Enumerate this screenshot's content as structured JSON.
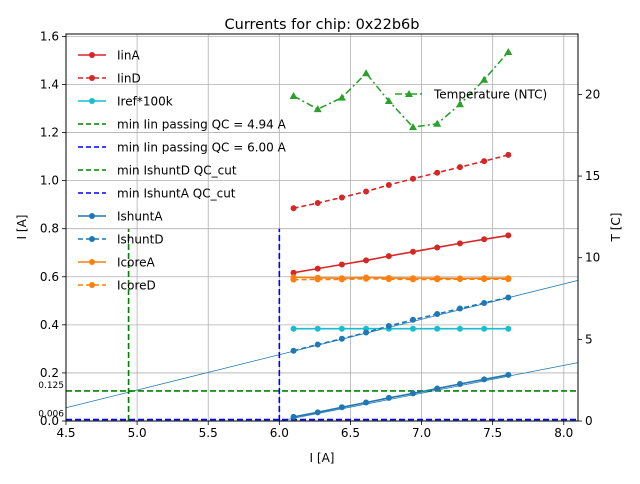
{
  "chart_data": {
    "type": "line",
    "title": "Currents for chip: 0x22b6b",
    "xlabel": "I [A]",
    "ylabel": "I [A]",
    "y2label": "T [C]",
    "xlim": [
      4.5,
      8.1
    ],
    "ylim": [
      0.0,
      1.61
    ],
    "y2lim": [
      0,
      23.7
    ],
    "xticks": [
      "4.5",
      "5.0",
      "5.5",
      "6.0",
      "6.5",
      "7.0",
      "7.5",
      "8.0"
    ],
    "xtick_values": [
      4.5,
      5.0,
      5.5,
      6.0,
      6.5,
      7.0,
      7.5,
      8.0
    ],
    "yticks": [
      "0.0",
      "0.2",
      "0.4",
      "0.6",
      "0.8",
      "1.0",
      "1.2",
      "1.4",
      "1.6"
    ],
    "ytick_values": [
      0.0,
      0.2,
      0.4,
      0.6,
      0.8,
      1.0,
      1.2,
      1.4,
      1.6
    ],
    "y2ticks": [
      "0",
      "5",
      "10",
      "15",
      "20"
    ],
    "y2tick_values": [
      0,
      5,
      10,
      15,
      20
    ],
    "grid": true,
    "legend_position": "upper-left",
    "legend2_position": "upper-right",
    "x": [
      6.1,
      6.27,
      6.44,
      6.61,
      6.77,
      6.94,
      7.11,
      7.27,
      7.44,
      7.61
    ],
    "series": [
      {
        "name": "IinA",
        "color": "#d62728",
        "dash": "solid",
        "marker": "circle",
        "axis": "left",
        "values": [
          0.617,
          0.634,
          0.651,
          0.668,
          0.686,
          0.704,
          0.722,
          0.739,
          0.756,
          0.772
        ]
      },
      {
        "name": "IinD",
        "color": "#d62728",
        "dash": "dashed",
        "marker": "circle",
        "axis": "left",
        "values": [
          0.885,
          0.907,
          0.93,
          0.955,
          0.982,
          1.008,
          1.033,
          1.056,
          1.081,
          1.107
        ]
      },
      {
        "name": "Iref*100k",
        "color": "#17becf",
        "dash": "solid",
        "marker": "circle",
        "axis": "left",
        "values": [
          0.384,
          0.384,
          0.384,
          0.384,
          0.384,
          0.384,
          0.384,
          0.384,
          0.384,
          0.384
        ]
      },
      {
        "name": "IshuntA",
        "color": "#1f77b4",
        "dash": "solid",
        "marker": "circle",
        "axis": "left",
        "values": [
          0.017,
          0.036,
          0.057,
          0.077,
          0.096,
          0.115,
          0.135,
          0.154,
          0.173,
          0.192
        ]
      },
      {
        "name": "IshuntD",
        "color": "#1f77b4",
        "dash": "dashed",
        "marker": "circle",
        "axis": "left",
        "values": [
          0.292,
          0.318,
          0.342,
          0.368,
          0.395,
          0.421,
          0.445,
          0.468,
          0.491,
          0.514
        ]
      },
      {
        "name": "IcoreA",
        "color": "#ff7f0e",
        "dash": "solid",
        "marker": "circle",
        "axis": "left",
        "values": [
          0.598,
          0.596,
          0.594,
          0.597,
          0.595,
          0.594,
          0.594,
          0.593,
          0.594,
          0.594
        ]
      },
      {
        "name": "IcoreD",
        "color": "#ff7f0e",
        "dash": "dashed",
        "marker": "circle",
        "axis": "left",
        "values": [
          0.588,
          0.589,
          0.589,
          0.592,
          0.59,
          0.589,
          0.589,
          0.59,
          0.59,
          0.59
        ]
      },
      {
        "name": "Temperature (NTC)",
        "color": "#2ca02c",
        "dash": "dashdot",
        "marker": "triangle",
        "axis": "right",
        "values": [
          19.9,
          19.1,
          19.8,
          21.3,
          19.6,
          18.0,
          18.2,
          19.4,
          20.9,
          22.6
        ]
      }
    ],
    "vlines": [
      {
        "name": "min Iin passing QC = 4.94 A",
        "x": 4.94,
        "color": "#008000",
        "ymax": 0.8
      },
      {
        "name": "min Iin passing QC = 6.00 A",
        "x": 6.0,
        "color": "#0000ff",
        "ymax": 0.8
      }
    ],
    "hlines": [
      {
        "name": "min IshuntD QC_cut",
        "y": 0.125,
        "color": "#008000",
        "label": "0.125"
      },
      {
        "name": "min IshuntA QC_cut",
        "y": 0.006,
        "color": "#0000ff",
        "label": "0.006"
      }
    ],
    "fit_lines": [
      {
        "name": "IshuntD fit",
        "color": "#1f77b4",
        "points": [
          [
            4.5,
            0.055
          ],
          [
            8.1,
            0.585
          ]
        ]
      },
      {
        "name": "IshuntA fit",
        "color": "#1f77b4",
        "points": [
          [
            6.0,
            0.0
          ],
          [
            8.1,
            0.243
          ]
        ]
      }
    ],
    "legend_order": [
      "IinA",
      "IinD",
      "Iref*100k",
      "min Iin passing QC = 4.94 A",
      "min Iin passing QC = 6.00 A",
      "min IshuntD QC_cut",
      "min IshuntA QC_cut",
      "IshuntA",
      "IshuntD",
      "IcoreA",
      "IcoreD"
    ]
  }
}
